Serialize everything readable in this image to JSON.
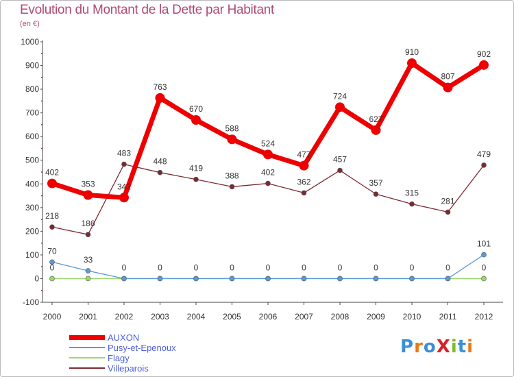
{
  "chart_data": {
    "type": "line",
    "title": "Evolution du Montant de la Dette par Habitant",
    "unit_label": "(en €)",
    "xlabel": "",
    "ylabel": "",
    "ylim": [
      -100,
      1000
    ],
    "y_ticks": [
      -100,
      0,
      100,
      200,
      300,
      400,
      500,
      600,
      700,
      800,
      900,
      1000
    ],
    "categories": [
      "2000",
      "2001",
      "2002",
      "2003",
      "2004",
      "2005",
      "2006",
      "2007",
      "2008",
      "2009",
      "2010",
      "2011",
      "2012"
    ],
    "grid": false,
    "legend_position": "bottom-left",
    "series": [
      {
        "name": "Villeparois",
        "color": "#7a2a30",
        "values": [
          218,
          186,
          483,
          448,
          419,
          388,
          402,
          362,
          457,
          357,
          315,
          281,
          479
        ],
        "labels": [
          "218",
          "186",
          "483",
          "448",
          "419",
          "388",
          "402",
          "362",
          "457",
          "357",
          "315",
          "281",
          "479"
        ]
      },
      {
        "name": "Flagy",
        "color": "#9ad86c",
        "values": [
          0,
          0,
          0,
          0,
          0,
          0,
          0,
          0,
          0,
          0,
          0,
          0,
          0
        ],
        "labels": [
          "0",
          "",
          "0",
          "0",
          "0",
          "0",
          "0",
          "0",
          "0",
          "0",
          "0",
          "0",
          "0"
        ]
      },
      {
        "name": "Pusy-et-Epenoux",
        "color": "#5a9ad6",
        "values": [
          70,
          33,
          0,
          0,
          0,
          0,
          0,
          0,
          0,
          0,
          0,
          0,
          101
        ],
        "labels": [
          "70",
          "33",
          "",
          "",
          "",
          "",
          "",
          "",
          "",
          "",
          "",
          "",
          "101"
        ]
      },
      {
        "name": "AUXON",
        "color": "#ee0000",
        "values": [
          402,
          353,
          342,
          763,
          670,
          588,
          524,
          477,
          724,
          627,
          910,
          807,
          902
        ],
        "labels": [
          "402",
          "353",
          "342",
          "763",
          "670",
          "588",
          "524",
          "477",
          "724",
          "627",
          "910",
          "807",
          "902"
        ]
      }
    ],
    "legend": [
      "AUXON",
      "Pusy-et-Epenoux",
      "Flagy",
      "Villeparois"
    ]
  },
  "logo": {
    "text": "ProXiti",
    "letters": [
      "P",
      "r",
      "o",
      "X",
      "i",
      "t",
      "i"
    ],
    "colors": [
      "#3b8fd8",
      "#e87a1a",
      "#3b8fd8",
      "#d8202a",
      "#7abf2a",
      "#3b8fd8",
      "#e87a1a"
    ]
  }
}
